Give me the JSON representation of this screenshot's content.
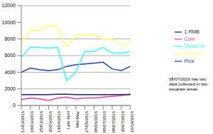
{
  "chart_data": {
    "type": "line",
    "categories": [
      "12/03/2016",
      "18/03/2016",
      "25/03/2016",
      "30/03/2016",
      "14/04/2016",
      "Late April",
      "Mid-May",
      "27/05/2016",
      "08/06/2016",
      "08/07/2016",
      "08/07/2016",
      "30/07/2016",
      "10/10/2016"
    ],
    "series": [
      {
        "name": "Rice",
        "color": "#1f3fbf",
        "values": [
          4000,
          4500,
          4300,
          4200,
          4300,
          4700,
          4900,
          5000,
          5100,
          5200,
          4400,
          4200,
          4700
        ]
      },
      {
        "name": "Corn",
        "color": "#e040b0",
        "values": [
          700,
          900,
          800,
          600,
          900,
          1000,
          800,
          900,
          900,
          1000,
          1100,
          1200,
          1400
        ]
      },
      {
        "name": "Gasoline",
        "color": "#ffff66",
        "values": [
          7500,
          9000,
          9000,
          9700,
          9400,
          7000,
          8500,
          8500,
          8500,
          8000,
          8000,
          7200,
          7600
        ]
      },
      {
        "name": "Diesel oil",
        "color": "#33ffff",
        "values": [
          5800,
          7000,
          7000,
          6900,
          7000,
          3000,
          4000,
          6500,
          6500,
          7000,
          6300,
          6300,
          6500
        ]
      },
      {
        "name": "1 RMB",
        "color": "#2a1a60",
        "values": [
          1300,
          1300,
          1300,
          1300,
          1350,
          1350,
          1300,
          1300,
          1300,
          1300,
          1300,
          1300,
          1300
        ]
      }
    ],
    "ylim": [
      0,
      12000
    ],
    "yticks": [
      0,
      2000,
      4000,
      6000,
      8000,
      10000,
      12000
    ],
    "grid": true,
    "legend": "right",
    "annotations": [
      "08/07/2016 has two data collected in two separate areas."
    ]
  }
}
